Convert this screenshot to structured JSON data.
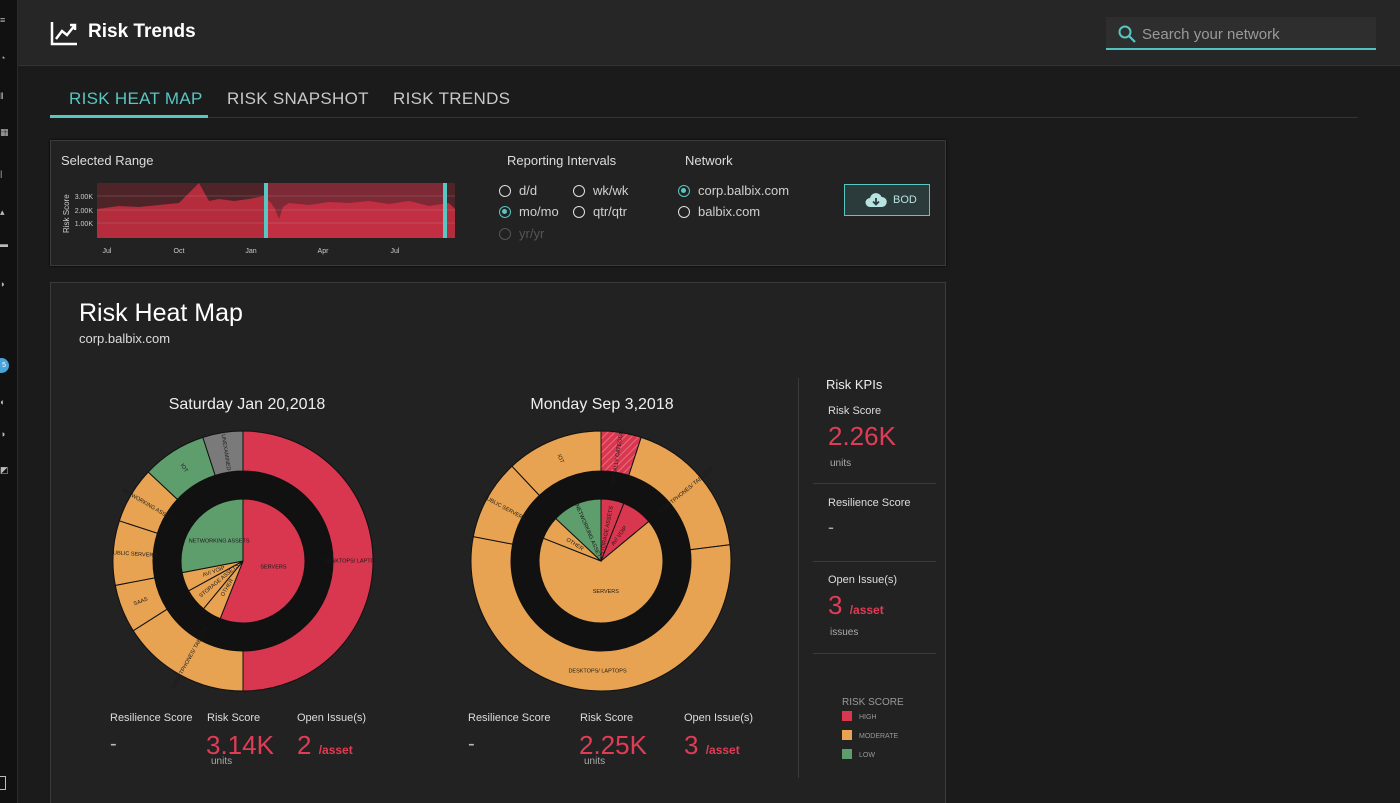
{
  "header": {
    "title": "Risk Trends",
    "search_placeholder": "Search your network"
  },
  "tabs": [
    {
      "label": "RISK HEAT MAP",
      "active": true
    },
    {
      "label": "RISK SNAPSHOT",
      "active": false
    },
    {
      "label": "RISK TRENDS",
      "active": false
    }
  ],
  "range": {
    "selected_range_label": "Selected Range",
    "chart": {
      "ylabel": "Risk Score",
      "y_ticks": [
        "3.00K",
        "2.00K",
        "1.00K"
      ],
      "x_ticks": [
        "Jul",
        "Oct",
        "Jan",
        "Apr",
        "Jul"
      ]
    },
    "reporting_label": "Reporting Intervals",
    "intervals": [
      {
        "label": "d/d",
        "selected": false,
        "disabled": false
      },
      {
        "label": "wk/wk",
        "selected": false,
        "disabled": false
      },
      {
        "label": "mo/mo",
        "selected": true,
        "disabled": false
      },
      {
        "label": "qtr/qtr",
        "selected": false,
        "disabled": false
      },
      {
        "label": "yr/yr",
        "selected": false,
        "disabled": true
      }
    ],
    "network_label": "Network",
    "networks": [
      {
        "label": "corp.balbix.com",
        "selected": true
      },
      {
        "label": "balbix.com",
        "selected": false
      }
    ],
    "bod_label": "BOD"
  },
  "heatmap": {
    "title": "Risk Heat Map",
    "subtitle": "corp.balbix.com",
    "left": {
      "date": "Saturday Jan 20,2018",
      "outer_segments": [
        {
          "label": "DESKTOPS/ LAPTOPS",
          "value": 50,
          "level": "high"
        },
        {
          "label": "SMARTPHONES/ TABLETS",
          "value": 16,
          "level": "moderate"
        },
        {
          "label": "SAAS",
          "value": 6,
          "level": "moderate"
        },
        {
          "label": "PUBLIC SERVERS",
          "value": 8,
          "level": "moderate"
        },
        {
          "label": "NETWORKING ASSETS",
          "value": 7,
          "level": "moderate"
        },
        {
          "label": "IOT",
          "value": 8,
          "level": "low"
        },
        {
          "label": "UNEXAMINED",
          "value": 5,
          "level": "unknown"
        }
      ],
      "inner_segments": [
        {
          "label": "SERVERS",
          "value": 56,
          "level": "high"
        },
        {
          "label": "OTHER",
          "value": 5,
          "level": "moderate"
        },
        {
          "label": "STORAGE ASSETS",
          "value": 6,
          "level": "moderate"
        },
        {
          "label": "AV/ VOIP",
          "value": 5,
          "level": "moderate"
        },
        {
          "label": "NETWORKING ASSETS",
          "value": 28,
          "level": "low"
        }
      ],
      "resilience_label": "Resilience Score",
      "resilience_value": "-",
      "risk_label": "Risk Score",
      "risk_value": "3.14K",
      "risk_unit": "units",
      "issues_label": "Open Issue(s)",
      "issues_value": "2",
      "issues_unit": "/asset"
    },
    "right": {
      "date": "Monday Sep 3,2018",
      "outer_segments": [
        {
          "label": "PARTIALLY CATEGORIZED",
          "value": 5,
          "level": "high-hatched"
        },
        {
          "label": "SMARTPHONES/ TABLETS",
          "value": 18,
          "level": "moderate"
        },
        {
          "label": "DESKTOPS/ LAPTOPS",
          "value": 55,
          "level": "moderate"
        },
        {
          "label": "PUBLIC SERVERS",
          "value": 10,
          "level": "moderate"
        },
        {
          "label": "IOT",
          "value": 12,
          "level": "moderate"
        }
      ],
      "inner_segments": [
        {
          "label": "STORAGE ASSETS",
          "value": 6,
          "level": "high"
        },
        {
          "label": "AV/ VOIP",
          "value": 8,
          "level": "high"
        },
        {
          "label": "SERVERS",
          "value": 67,
          "level": "moderate"
        },
        {
          "label": "OTHER",
          "value": 6,
          "level": "moderate"
        },
        {
          "label": "NETWORKING ASSETS",
          "value": 13,
          "level": "low"
        }
      ],
      "resilience_label": "Resilience Score",
      "resilience_value": "-",
      "risk_label": "Risk Score",
      "risk_value": "2.25K",
      "risk_unit": "units",
      "issues_label": "Open Issue(s)",
      "issues_value": "3",
      "issues_unit": "/asset"
    }
  },
  "kpis": {
    "title": "Risk KPIs",
    "risk_label": "Risk Score",
    "risk_value": "2.26K",
    "risk_unit": "units",
    "resilience_label": "Resilience Score",
    "resilience_value": "-",
    "issues_label": "Open Issue(s)",
    "issues_value": "3",
    "issues_per": "/asset",
    "issues_unit": "issues"
  },
  "legend": {
    "title": "RISK SCORE",
    "items": [
      {
        "label": "HIGH",
        "color": "#d9364f"
      },
      {
        "label": "MODERATE",
        "color": "#e8a352"
      },
      {
        "label": "LOW",
        "color": "#5e9d6c"
      }
    ]
  },
  "colors": {
    "high": "#d9364f",
    "moderate": "#e8a352",
    "low": "#5e9d6c",
    "unknown": "#7a7a7a",
    "accent": "#58c6c2"
  }
}
